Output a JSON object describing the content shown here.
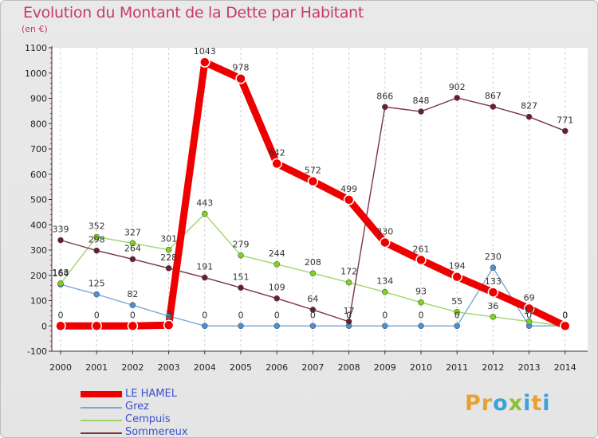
{
  "header": {
    "title": "Evolution du Montant de la Dette par Habitant",
    "subtitle": "(en €)"
  },
  "brand": {
    "text": "Proxiti",
    "letter_colors": [
      "#e8a030",
      "#e8a030",
      "#3ba3d8",
      "#8fbf3a",
      "#3ba3d8",
      "#e8a030",
      "#3ba3d8"
    ]
  },
  "chart_data": {
    "type": "line",
    "title": "Evolution du Montant de la Dette par Habitant",
    "subtitle": "(en €)",
    "xlabel": "",
    "ylabel": "",
    "x": [
      "2000",
      "2001",
      "2002",
      "2003",
      "2004",
      "2005",
      "2006",
      "2007",
      "2008",
      "2009",
      "2010",
      "2011",
      "2012",
      "2013",
      "2014"
    ],
    "ylim": [
      -100,
      1100
    ],
    "yticks": [
      -100,
      0,
      100,
      200,
      300,
      400,
      500,
      600,
      700,
      800,
      900,
      1000,
      1100
    ],
    "grid": "vertical",
    "legend_position": "bottom-left",
    "series": [
      {
        "name": "LE HAMEL",
        "color": "#ee0000",
        "line": "#ee0000",
        "width": 9,
        "r": 6,
        "points": [
          [
            "2000",
            0
          ],
          [
            "2001",
            0
          ],
          [
            "2002",
            0
          ],
          [
            "2003",
            3
          ],
          [
            "2004",
            1043
          ],
          [
            "2005",
            978
          ],
          [
            "2006",
            642
          ],
          [
            "2007",
            572
          ],
          [
            "2008",
            499
          ],
          [
            "2009",
            330
          ],
          [
            "2010",
            261
          ],
          [
            "2011",
            194
          ],
          [
            "2012",
            133
          ],
          [
            "2013",
            69
          ],
          [
            "2014",
            0
          ]
        ],
        "labels": [
          "0",
          "0",
          "0",
          "3",
          "1043",
          "978",
          "642",
          "572",
          "499",
          "330",
          "261",
          "194",
          "133",
          "69",
          "0"
        ]
      },
      {
        "name": "Grez",
        "color": "#4a90d4",
        "line": "#7ba8d6",
        "width": 1.4,
        "r": 3.5,
        "points": [
          [
            "2000",
            164
          ],
          [
            "2001",
            125
          ],
          [
            "2002",
            82
          ],
          [
            "2003",
            39
          ],
          [
            "2004",
            0
          ],
          [
            "2005",
            0
          ],
          [
            "2006",
            0
          ],
          [
            "2007",
            0
          ],
          [
            "2008",
            0
          ],
          [
            "2009",
            0
          ],
          [
            "2010",
            0
          ],
          [
            "2011",
            0
          ],
          [
            "2012",
            230
          ],
          [
            "2013",
            0
          ],
          [
            "2014",
            0
          ]
        ],
        "labels": [
          "164",
          "125",
          "82",
          "",
          "0",
          "0",
          "0",
          "0",
          "0",
          "0",
          "0",
          "0",
          "230",
          "0",
          "0"
        ]
      },
      {
        "name": "Cempuis",
        "color": "#7ed321",
        "line": "#9ed66a",
        "width": 1.4,
        "r": 3.5,
        "points": [
          [
            "2000",
            168
          ],
          [
            "2001",
            352
          ],
          [
            "2002",
            327
          ],
          [
            "2003",
            301
          ],
          [
            "2004",
            443
          ],
          [
            "2005",
            279
          ],
          [
            "2006",
            244
          ],
          [
            "2007",
            208
          ],
          [
            "2008",
            172
          ],
          [
            "2009",
            134
          ],
          [
            "2010",
            93
          ],
          [
            "2011",
            55
          ],
          [
            "2012",
            36
          ],
          [
            "2013",
            17
          ],
          [
            "2014",
            0
          ]
        ],
        "labels": [
          "168",
          "352",
          "327",
          "301",
          "443",
          "279",
          "244",
          "208",
          "172",
          "134",
          "93",
          "55",
          "36",
          "17",
          "0"
        ]
      },
      {
        "name": "Sommereux",
        "color": "#6b1c2e",
        "line": "#7a3443",
        "width": 1.4,
        "r": 3.5,
        "points": [
          [
            "2000",
            339
          ],
          [
            "2001",
            298
          ],
          [
            "2002",
            264
          ],
          [
            "2003",
            228
          ],
          [
            "2004",
            191
          ],
          [
            "2005",
            151
          ],
          [
            "2006",
            109
          ],
          [
            "2007",
            64
          ],
          [
            "2008",
            17
          ],
          [
            "2009",
            866
          ],
          [
            "2010",
            848
          ],
          [
            "2011",
            902
          ],
          [
            "2012",
            867
          ],
          [
            "2013",
            827
          ],
          [
            "2014",
            771
          ]
        ],
        "labels": [
          "339",
          "298",
          "264",
          "228",
          "191",
          "151",
          "109",
          "64",
          "17",
          "866",
          "848",
          "902",
          "867",
          "827",
          "771"
        ]
      }
    ],
    "label_draw_order": [
      2,
      1,
      3,
      0
    ]
  }
}
